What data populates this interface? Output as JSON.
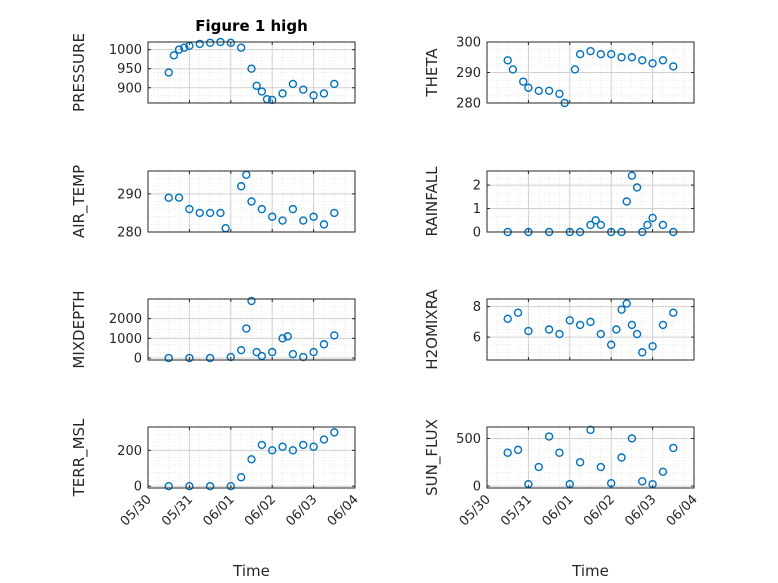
{
  "figure_title": "Figure 1 high",
  "marker_color": "#0072BD",
  "chart_data": [
    {
      "type": "scatter",
      "ylabel": "PRESSURE",
      "title": "Figure 1 high",
      "xlabel": "",
      "ylim": [
        860,
        1020
      ],
      "yticks": [
        900,
        950,
        1000
      ],
      "grid": true,
      "x": [
        "05/30 12:00",
        "05/30 15:00",
        "05/30 18:00",
        "05/30 21:00",
        "05/31 00:00",
        "05/31 06:00",
        "05/31 12:00",
        "05/31 18:00",
        "06/01 00:00",
        "06/01 06:00",
        "06/01 12:00",
        "06/01 15:00",
        "06/01 18:00",
        "06/01 21:00",
        "06/02 00:00",
        "06/02 06:00",
        "06/02 12:00",
        "06/02 18:00",
        "06/03 00:00",
        "06/03 06:00",
        "06/03 12:00"
      ],
      "y": [
        940,
        985,
        1000,
        1005,
        1010,
        1015,
        1018,
        1020,
        1018,
        1005,
        950,
        905,
        890,
        870,
        868,
        885,
        910,
        895,
        880,
        885,
        910
      ]
    },
    {
      "type": "scatter",
      "ylabel": "THETA",
      "xlabel": "",
      "ylim": [
        280,
        300
      ],
      "yticks": [
        280,
        290,
        300
      ],
      "grid": true,
      "x": [
        "05/30 12:00",
        "05/30 15:00",
        "05/30 21:00",
        "05/31 00:00",
        "05/31 06:00",
        "05/31 12:00",
        "05/31 18:00",
        "05/31 21:00",
        "06/01 03:00",
        "06/01 06:00",
        "06/01 12:00",
        "06/01 18:00",
        "06/02 00:00",
        "06/02 06:00",
        "06/02 12:00",
        "06/02 18:00",
        "06/03 00:00",
        "06/03 06:00",
        "06/03 12:00"
      ],
      "y": [
        294,
        291,
        287,
        285,
        284,
        284,
        283,
        280,
        291,
        296,
        297,
        296,
        296,
        295,
        295,
        294,
        293,
        294,
        292
      ]
    },
    {
      "type": "scatter",
      "ylabel": "AIR_TEMP",
      "xlabel": "",
      "ylim": [
        280,
        296
      ],
      "yticks": [
        280,
        290
      ],
      "grid": true,
      "x": [
        "05/30 12:00",
        "05/30 18:00",
        "05/31 00:00",
        "05/31 06:00",
        "05/31 12:00",
        "05/31 18:00",
        "05/31 21:00",
        "06/01 06:00",
        "06/01 09:00",
        "06/01 12:00",
        "06/01 18:00",
        "06/02 00:00",
        "06/02 06:00",
        "06/02 12:00",
        "06/02 18:00",
        "06/03 00:00",
        "06/03 06:00",
        "06/03 12:00"
      ],
      "y": [
        289,
        289,
        286,
        285,
        285,
        285,
        281,
        292,
        295,
        288,
        286,
        284,
        283,
        286,
        283,
        284,
        282,
        285
      ]
    },
    {
      "type": "scatter",
      "ylabel": "RAINFALL",
      "xlabel": "",
      "ylim": [
        0,
        2.6
      ],
      "yticks": [
        0,
        1,
        2
      ],
      "grid": true,
      "x": [
        "05/30 12:00",
        "05/31 00:00",
        "05/31 12:00",
        "06/01 00:00",
        "06/01 06:00",
        "06/01 12:00",
        "06/01 15:00",
        "06/01 18:00",
        "06/02 00:00",
        "06/02 06:00",
        "06/02 09:00",
        "06/02 12:00",
        "06/02 15:00",
        "06/02 18:00",
        "06/02 21:00",
        "06/03 00:00",
        "06/03 06:00",
        "06/03 12:00"
      ],
      "y": [
        0,
        0,
        0,
        0,
        0,
        0.3,
        0.5,
        0.3,
        0,
        0,
        1.3,
        2.4,
        1.9,
        0,
        0.3,
        0.6,
        0.3,
        0
      ]
    },
    {
      "type": "scatter",
      "ylabel": "MIXDEPTH",
      "xlabel": "",
      "ylim": [
        -100,
        3000
      ],
      "yticks": [
        0,
        1000,
        2000
      ],
      "grid": true,
      "x": [
        "05/30 12:00",
        "05/31 00:00",
        "05/31 12:00",
        "06/01 00:00",
        "06/01 06:00",
        "06/01 09:00",
        "06/01 12:00",
        "06/01 15:00",
        "06/01 18:00",
        "06/02 00:00",
        "06/02 06:00",
        "06/02 09:00",
        "06/02 12:00",
        "06/02 18:00",
        "06/03 00:00",
        "06/03 06:00",
        "06/03 12:00"
      ],
      "y": [
        0,
        0,
        0,
        50,
        400,
        1500,
        2900,
        300,
        100,
        300,
        1000,
        1100,
        200,
        50,
        300,
        700,
        1150
      ]
    },
    {
      "type": "scatter",
      "ylabel": "H2OMIXRA",
      "xlabel": "",
      "ylim": [
        4.5,
        8.5
      ],
      "yticks": [
        6,
        8
      ],
      "grid": true,
      "x": [
        "05/30 12:00",
        "05/30 18:00",
        "05/31 00:00",
        "05/31 12:00",
        "05/31 18:00",
        "06/01 00:00",
        "06/01 06:00",
        "06/01 12:00",
        "06/01 18:00",
        "06/02 00:00",
        "06/02 03:00",
        "06/02 06:00",
        "06/02 09:00",
        "06/02 12:00",
        "06/02 15:00",
        "06/02 18:00",
        "06/03 00:00",
        "06/03 06:00",
        "06/03 12:00"
      ],
      "y": [
        7.2,
        7.6,
        6.4,
        6.5,
        6.2,
        7.1,
        6.8,
        7.0,
        6.2,
        5.5,
        6.5,
        7.8,
        8.2,
        6.8,
        6.2,
        5.0,
        5.4,
        6.8,
        7.6
      ]
    },
    {
      "type": "scatter",
      "ylabel": "TERR_MSL",
      "xlabel": "Time",
      "ylim": [
        -10,
        330
      ],
      "yticks": [
        0,
        200
      ],
      "grid": true,
      "xticks": [
        "05/30",
        "05/31",
        "06/01",
        "06/02",
        "06/03",
        "06/04"
      ],
      "x": [
        "05/30 12:00",
        "05/31 00:00",
        "05/31 12:00",
        "06/01 00:00",
        "06/01 06:00",
        "06/01 12:00",
        "06/01 18:00",
        "06/02 00:00",
        "06/02 06:00",
        "06/02 12:00",
        "06/02 18:00",
        "06/03 00:00",
        "06/03 06:00",
        "06/03 12:00"
      ],
      "y": [
        0,
        0,
        0,
        0,
        50,
        150,
        230,
        200,
        220,
        200,
        230,
        220,
        260,
        300
      ]
    },
    {
      "type": "scatter",
      "ylabel": "SUN_FLUX",
      "xlabel": "Time",
      "ylim": [
        -20,
        620
      ],
      "yticks": [
        0,
        500
      ],
      "grid": true,
      "xticks": [
        "05/30",
        "05/31",
        "06/01",
        "06/02",
        "06/03",
        "06/04"
      ],
      "x": [
        "05/30 12:00",
        "05/30 18:00",
        "05/31 00:00",
        "05/31 06:00",
        "05/31 12:00",
        "05/31 18:00",
        "06/01 00:00",
        "06/01 06:00",
        "06/01 12:00",
        "06/01 18:00",
        "06/02 00:00",
        "06/02 06:00",
        "06/02 12:00",
        "06/02 18:00",
        "06/03 00:00",
        "06/03 06:00",
        "06/03 12:00"
      ],
      "y": [
        350,
        380,
        20,
        200,
        520,
        350,
        20,
        250,
        590,
        200,
        30,
        300,
        500,
        50,
        20,
        150,
        400
      ]
    }
  ]
}
